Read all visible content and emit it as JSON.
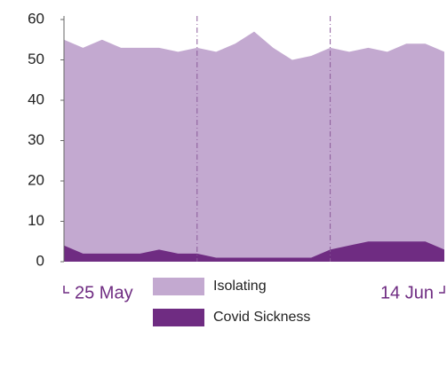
{
  "chart_data": {
    "type": "area",
    "categories": [
      "25 May",
      null,
      null,
      null,
      null,
      null,
      null,
      null,
      null,
      null,
      null,
      null,
      null,
      null,
      null,
      null,
      null,
      null,
      null,
      null,
      "14 Jun"
    ],
    "series": [
      {
        "name": "Isolating",
        "color": "#c3a9d0",
        "values": [
          55,
          53,
          55,
          53,
          53,
          53,
          52,
          53,
          52,
          54,
          57,
          53,
          50,
          51,
          53,
          52,
          53,
          52,
          54,
          54,
          52
        ]
      },
      {
        "name": "Covid Sickness",
        "color": "#6f2c82",
        "values": [
          4,
          2,
          2,
          2,
          2,
          3,
          2,
          2,
          1,
          1,
          1,
          1,
          1,
          1,
          3,
          4,
          5,
          5,
          5,
          5,
          3
        ]
      }
    ],
    "ylim": [
      0,
      60
    ],
    "yticks": [
      0,
      10,
      20,
      30,
      40,
      50,
      60
    ]
  }
}
